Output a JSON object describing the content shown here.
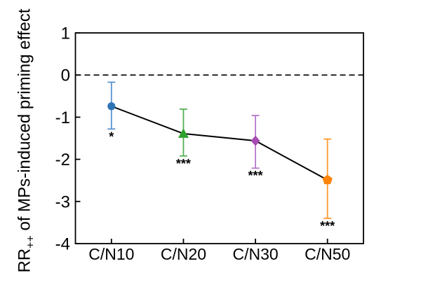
{
  "figure": {
    "background": "#ffffff",
    "axis_color": "#000000",
    "ylabel": {
      "prefix": "RR",
      "sub": "++",
      "suffix": " of MPs-induced priming effect"
    }
  },
  "chart_data": {
    "type": "line",
    "title": "",
    "xlabel": "",
    "ylabel": "RR++ of MPs-induced priming effect",
    "categories": [
      "C/N10",
      "C/N20",
      "C/N30",
      "C/N50"
    ],
    "series": [
      {
        "name": "MPs-induced priming effect",
        "values": [
          -0.74,
          -1.39,
          -1.56,
          -2.49
        ],
        "ci_high": [
          -0.17,
          -0.81,
          -0.96,
          -1.52
        ],
        "ci_low": [
          -1.28,
          -1.92,
          -2.21,
          -3.4
        ],
        "significance": [
          "*",
          "***",
          "***",
          "***"
        ],
        "markers": [
          "circle",
          "triangle-up",
          "diamond",
          "pentagon"
        ],
        "marker_colors": [
          "#2e73b5",
          "#2fa12f",
          "#a64cb2",
          "#ff850a"
        ],
        "errorbar_colors": [
          "#5b93cf",
          "#55b155",
          "#b878cc",
          "#ff9a2e"
        ],
        "line_color": "#000000"
      }
    ],
    "ylim": [
      -4,
      1
    ],
    "yticks": [
      1,
      0,
      -1,
      -2,
      -3,
      -4
    ],
    "reference_line": {
      "y": 0,
      "style": "dashed",
      "color": "#000000"
    },
    "grid": false,
    "legend": false,
    "frame": "box"
  }
}
